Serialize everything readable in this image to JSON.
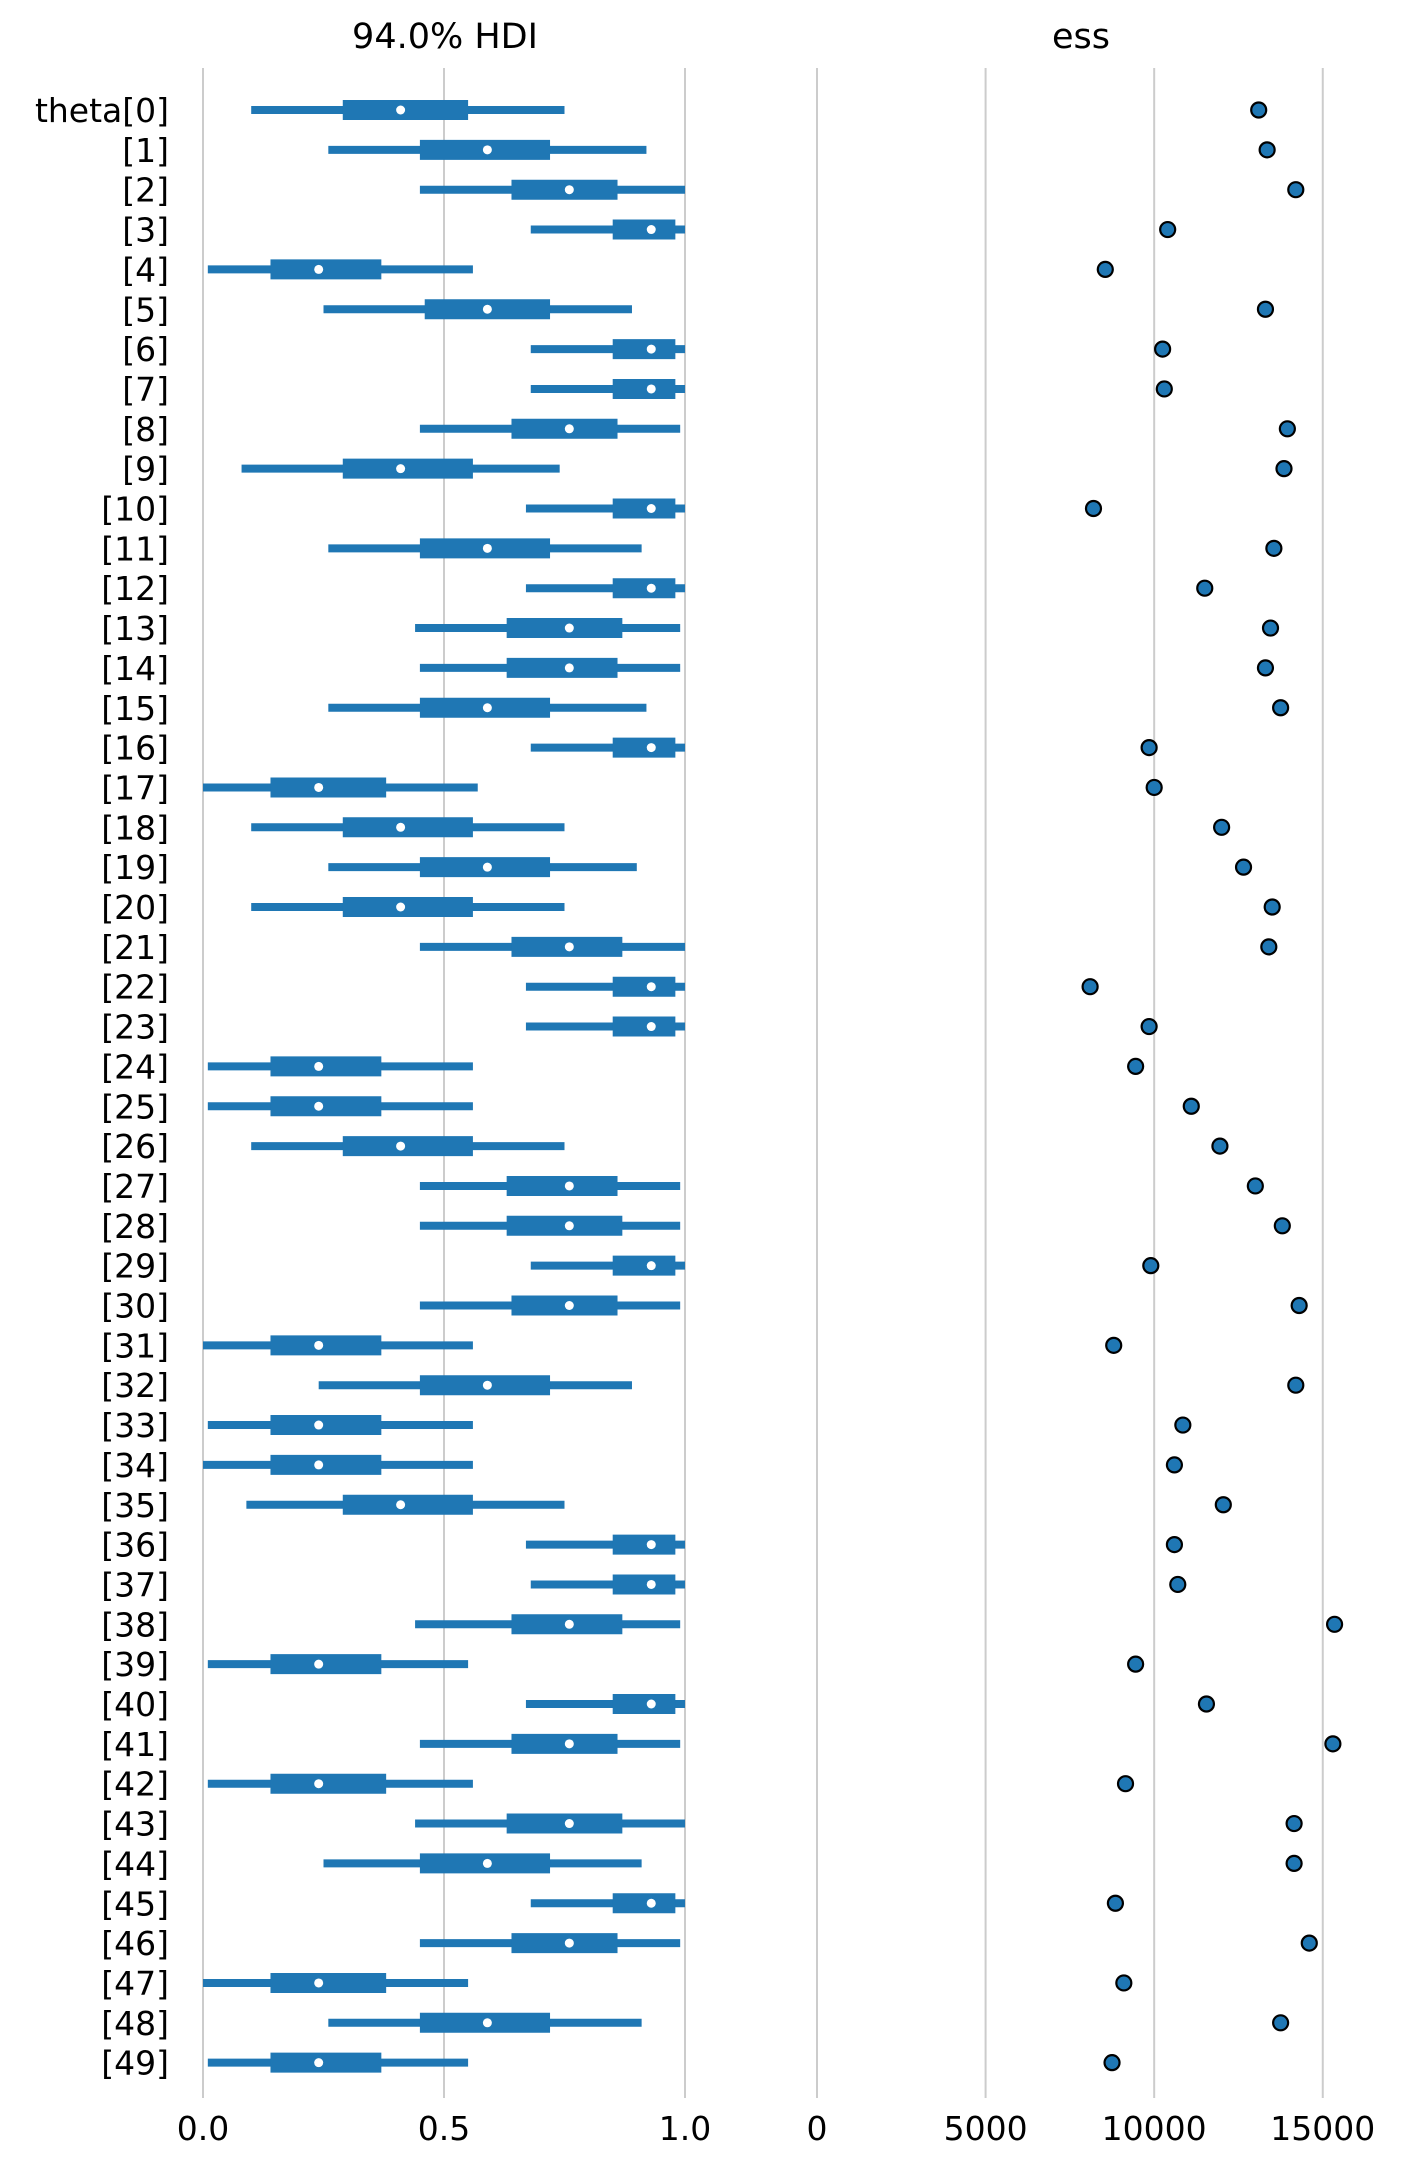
{
  "colors": {
    "primary": "#1f77b4",
    "median_dot": "#ffffff",
    "gridline": "#cccccc",
    "marker_edge": "#000000",
    "text": "#000000"
  },
  "chart_data": [
    {
      "type": "forest",
      "title": "94.0% HDI",
      "xlim": [
        0.0,
        1.0
      ],
      "xticks": [
        0.0,
        0.5,
        1.0
      ],
      "xtick_labels": [
        "0.0",
        "0.5",
        "1.0"
      ],
      "grid": "vertical",
      "row_labels": [
        "theta[0]",
        "[1]",
        "[2]",
        "[3]",
        "[4]",
        "[5]",
        "[6]",
        "[7]",
        "[8]",
        "[9]",
        "[10]",
        "[11]",
        "[12]",
        "[13]",
        "[14]",
        "[15]",
        "[16]",
        "[17]",
        "[18]",
        "[19]",
        "[20]",
        "[21]",
        "[22]",
        "[23]",
        "[24]",
        "[25]",
        "[26]",
        "[27]",
        "[28]",
        "[29]",
        "[30]",
        "[31]",
        "[32]",
        "[33]",
        "[34]",
        "[35]",
        "[36]",
        "[37]",
        "[38]",
        "[39]",
        "[40]",
        "[41]",
        "[42]",
        "[43]",
        "[44]",
        "[45]",
        "[46]",
        "[47]",
        "[48]",
        "[49]"
      ],
      "hdi_lower": [
        0.1,
        0.26,
        0.45,
        0.68,
        0.01,
        0.25,
        0.68,
        0.68,
        0.45,
        0.08,
        0.67,
        0.26,
        0.67,
        0.44,
        0.45,
        0.26,
        0.68,
        0.0,
        0.1,
        0.26,
        0.1,
        0.45,
        0.67,
        0.67,
        0.01,
        0.01,
        0.1,
        0.45,
        0.45,
        0.68,
        0.45,
        0.0,
        0.24,
        0.01,
        0.0,
        0.09,
        0.67,
        0.68,
        0.44,
        0.01,
        0.67,
        0.45,
        0.01,
        0.44,
        0.25,
        0.68,
        0.45,
        0.0,
        0.26,
        0.01
      ],
      "q25": [
        0.29,
        0.45,
        0.64,
        0.85,
        0.14,
        0.46,
        0.85,
        0.85,
        0.64,
        0.29,
        0.85,
        0.45,
        0.85,
        0.63,
        0.63,
        0.45,
        0.85,
        0.14,
        0.29,
        0.45,
        0.29,
        0.64,
        0.85,
        0.85,
        0.14,
        0.14,
        0.29,
        0.63,
        0.63,
        0.85,
        0.64,
        0.14,
        0.45,
        0.14,
        0.14,
        0.29,
        0.85,
        0.85,
        0.64,
        0.14,
        0.85,
        0.64,
        0.14,
        0.63,
        0.45,
        0.85,
        0.64,
        0.14,
        0.45,
        0.14
      ],
      "median": [
        0.41,
        0.59,
        0.76,
        0.93,
        0.24,
        0.59,
        0.93,
        0.93,
        0.76,
        0.41,
        0.93,
        0.59,
        0.93,
        0.76,
        0.76,
        0.59,
        0.93,
        0.24,
        0.41,
        0.59,
        0.41,
        0.76,
        0.93,
        0.93,
        0.24,
        0.24,
        0.41,
        0.76,
        0.76,
        0.93,
        0.76,
        0.24,
        0.59,
        0.24,
        0.24,
        0.41,
        0.93,
        0.93,
        0.76,
        0.24,
        0.93,
        0.76,
        0.24,
        0.76,
        0.59,
        0.93,
        0.76,
        0.24,
        0.59,
        0.24
      ],
      "q75": [
        0.55,
        0.72,
        0.86,
        0.98,
        0.37,
        0.72,
        0.98,
        0.98,
        0.86,
        0.56,
        0.98,
        0.72,
        0.98,
        0.87,
        0.86,
        0.72,
        0.98,
        0.38,
        0.56,
        0.72,
        0.56,
        0.87,
        0.98,
        0.98,
        0.37,
        0.37,
        0.56,
        0.86,
        0.87,
        0.98,
        0.86,
        0.37,
        0.72,
        0.37,
        0.37,
        0.56,
        0.98,
        0.98,
        0.87,
        0.37,
        0.98,
        0.86,
        0.38,
        0.87,
        0.72,
        0.98,
        0.86,
        0.38,
        0.72,
        0.37
      ],
      "hdi_upper": [
        0.75,
        0.92,
        1.0,
        1.0,
        0.56,
        0.89,
        1.0,
        1.0,
        0.99,
        0.74,
        1.0,
        0.91,
        1.0,
        0.99,
        0.99,
        0.92,
        1.0,
        0.57,
        0.75,
        0.9,
        0.75,
        1.0,
        1.0,
        1.0,
        0.56,
        0.56,
        0.75,
        0.99,
        0.99,
        1.0,
        0.99,
        0.56,
        0.89,
        0.56,
        0.56,
        0.75,
        1.0,
        1.0,
        0.99,
        0.55,
        1.0,
        0.99,
        0.56,
        1.0,
        0.91,
        1.0,
        0.99,
        0.55,
        0.91,
        0.55
      ]
    },
    {
      "type": "scatter",
      "title": "ess",
      "xlim": [
        0,
        15600
      ],
      "xticks": [
        0,
        5000,
        10000,
        15000
      ],
      "xtick_labels": [
        "0",
        "5000",
        "10000",
        "15000"
      ],
      "grid": "vertical",
      "values": [
        13100,
        13350,
        14200,
        10400,
        8550,
        13300,
        10250,
        10300,
        13950,
        13850,
        8200,
        13550,
        11500,
        13450,
        13300,
        13750,
        9850,
        10000,
        12000,
        12650,
        13500,
        13400,
        8100,
        9850,
        9450,
        11100,
        11950,
        13000,
        13800,
        9900,
        14300,
        8800,
        14200,
        10850,
        10600,
        12050,
        10600,
        10700,
        15350,
        9450,
        11550,
        15300,
        9150,
        14150,
        14150,
        8850,
        14600,
        9100,
        13750,
        8750
      ]
    }
  ]
}
